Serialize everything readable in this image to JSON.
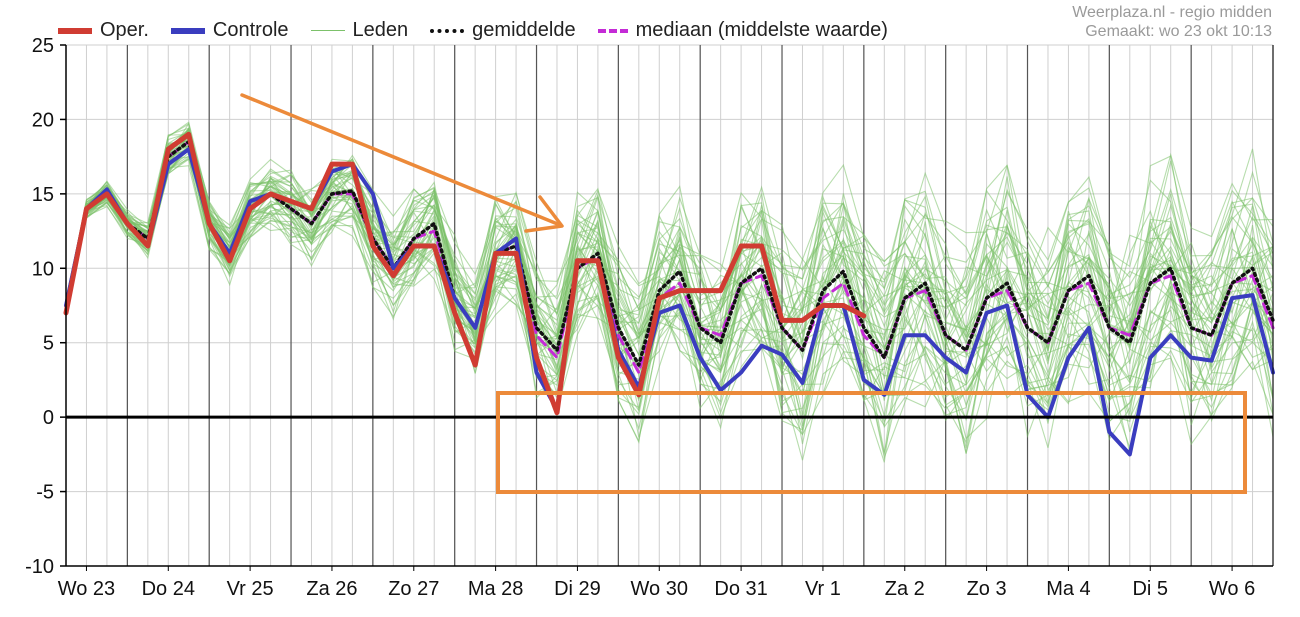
{
  "credit": {
    "line1": "Weerplaza.nl - regio midden",
    "line2": "Gemaakt: wo 23 okt 10:13"
  },
  "legend": {
    "oper": "Oper.",
    "controle": "Controle",
    "leden": "Leden",
    "gemiddelde": "gemiddelde",
    "mediaan": "mediaan (middelste waarde)"
  },
  "colors": {
    "oper": "#d03c32",
    "controle": "#3a3dbf",
    "leden": "#7cc16a",
    "gemiddelde": "#111111",
    "mediaan": "#c42bd6",
    "annotation": "#ec8a3a",
    "grid_major": "#555555",
    "grid_minor": "#cfcfcf"
  },
  "chart_data": {
    "type": "line",
    "title": "",
    "xlabel": "",
    "ylabel": "",
    "ylim": [
      -10,
      25
    ],
    "yticks": [
      -10,
      -5,
      0,
      5,
      10,
      15,
      20,
      25
    ],
    "day_labels": [
      "Wo 23",
      "Do 24",
      "Vr 25",
      "Za 26",
      "Zo 27",
      "Ma 28",
      "Di 29",
      "Wo 30",
      "Do 31",
      "Vr 1",
      "Za 2",
      "Zo 3",
      "Ma 4",
      "Di 5",
      "Wo 6"
    ],
    "steps_per_day": 4,
    "grid": true,
    "legend_position": "top",
    "series": [
      {
        "name": "Oper.",
        "values": [
          7,
          14,
          15,
          13,
          11.5,
          18,
          19,
          13,
          10.5,
          14,
          15,
          14.5,
          14,
          17,
          17,
          11.5,
          9.5,
          11.5,
          11.5,
          7,
          3.5,
          11,
          11,
          4,
          0.3,
          10.5,
          10.5,
          4,
          1.5,
          8,
          8.5,
          8.5,
          8.5,
          11.5,
          11.5,
          6.5,
          6.5,
          7.5,
          7.5,
          6.8
        ]
      },
      {
        "name": "Controle",
        "values": [
          7.5,
          14,
          15.3,
          13,
          11.5,
          17,
          18,
          13,
          11,
          14.5,
          15,
          14.5,
          14,
          16.5,
          17,
          15,
          10,
          11.5,
          11.5,
          8,
          6,
          11,
          12,
          3,
          0.5,
          10.5,
          10.5,
          4.5,
          2,
          7,
          7.5,
          4,
          1.8,
          3,
          4.8,
          4.2,
          2.3,
          7.5,
          7.5,
          2.5,
          1.5,
          5.5,
          5.5,
          4,
          3,
          7,
          7.5,
          1.5,
          0,
          4,
          6,
          -1,
          -2.5,
          4,
          5.5,
          4,
          3.8,
          8,
          8.2,
          3
        ]
      },
      {
        "name": "gemiddelde",
        "values": [
          7.5,
          14,
          15,
          13,
          12,
          17.5,
          18.5,
          13,
          11,
          14,
          15,
          14,
          13,
          15,
          15.2,
          12,
          10,
          12,
          13,
          8,
          6,
          11,
          11.5,
          6,
          4.5,
          10,
          11,
          6,
          3.5,
          8.5,
          9.8,
          6,
          5,
          9,
          10,
          6,
          4.5,
          8.5,
          9.8,
          6,
          4,
          8,
          9,
          5.5,
          4.5,
          8,
          9,
          6,
          5,
          8.5,
          9.5,
          6,
          5,
          9,
          10,
          6,
          5.5,
          9,
          10,
          6.5
        ]
      },
      {
        "name": "mediaan (middelste waarde)",
        "values": [
          7.5,
          14,
          15,
          13,
          12,
          17.5,
          18.5,
          13,
          11,
          14,
          15,
          14,
          13,
          15,
          15,
          12,
          10,
          12,
          12.5,
          8,
          6,
          11,
          11.5,
          5.5,
          4,
          10,
          10.8,
          5.5,
          3,
          8,
          9,
          6,
          5.5,
          9,
          9.5,
          6,
          4.5,
          8,
          9,
          5.5,
          4,
          8,
          8.5,
          5.5,
          4.5,
          8,
          8.5,
          6,
          5,
          8.5,
          9,
          6,
          5.5,
          9,
          9.5,
          6,
          5.5,
          9,
          9.5,
          6
        ]
      }
    ],
    "members": {
      "name": "Leden",
      "count": 48,
      "note": "spread of ensemble members around the mean"
    }
  },
  "annotations": {
    "arrow": "orange arrow pointing down-right toward Di 29",
    "box": "orange rectangle around the 0 to -5 band from Ma 28 to Wo 6"
  }
}
